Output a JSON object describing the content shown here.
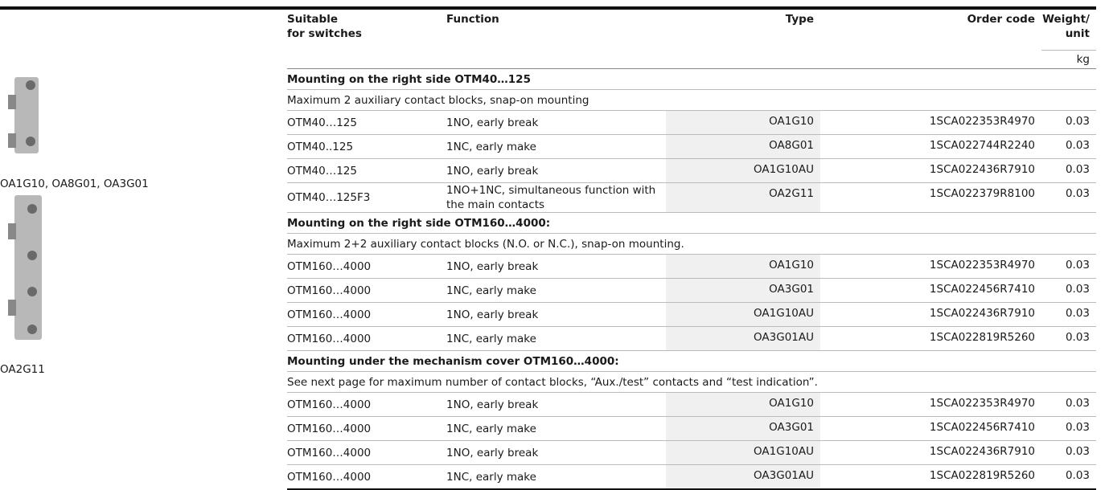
{
  "header": {
    "columns": [
      [
        "Suitable",
        "for switches"
      ],
      [
        "Function"
      ],
      [
        "Type"
      ],
      [
        "Order code"
      ],
      [
        "Weight/",
        "unit"
      ]
    ],
    "unit": "kg"
  },
  "images": [
    {
      "caption": "OA1G10, OA8G01, OA3G01"
    },
    {
      "caption": "OA2G11"
    }
  ],
  "sections": [
    {
      "title": "Mounting on the right side OTM40…125",
      "note": "Maximum 2 auxiliary contact blocks, snap-on mounting",
      "rows": [
        [
          "OTM40…125",
          "1NO, early break",
          "OA1G10",
          "1SCA022353R4970",
          "0.03"
        ],
        [
          "OTM40..125",
          "1NC, early make",
          "OA8G01",
          "1SCA022744R2240",
          "0.03"
        ],
        [
          "OTM40…125",
          "1NO, early break",
          "OA1G10AU",
          "1SCA022436R7910",
          "0.03"
        ],
        [
          "OTM40…125F3",
          "1NO+1NC, simultaneous function with the main contacts",
          "OA2G11",
          "1SCA022379R8100",
          "0.03"
        ]
      ]
    },
    {
      "title": "Mounting on the right side OTM160…4000:",
      "note": "Maximum 2+2 auxiliary contact blocks (N.O. or N.C.), snap-on mounting.",
      "rows": [
        [
          "OTM160…4000",
          "1NO, early break",
          "OA1G10",
          "1SCA022353R4970",
          "0.03"
        ],
        [
          "OTM160…4000",
          "1NC, early make",
          "OA3G01",
          "1SCA022456R7410",
          "0.03"
        ],
        [
          "OTM160…4000",
          "1NO, early break",
          "OA1G10AU",
          "1SCA022436R7910",
          "0.03"
        ],
        [
          "OTM160…4000",
          "1NC, early make",
          "OA3G01AU",
          "1SCA022819R5260",
          "0.03"
        ]
      ]
    },
    {
      "title": "Mounting under the mechanism cover OTM160…4000:",
      "note": "See next page for maximum number of contact blocks, “Aux./test” contacts and “test indication”.",
      "rows": [
        [
          "OTM160…4000",
          "1NO, early break",
          "OA1G10",
          "1SCA022353R4970",
          "0.03"
        ],
        [
          "OTM160…4000",
          "1NC, early make",
          "OA3G01",
          "1SCA022456R7410",
          "0.03"
        ],
        [
          "OTM160…4000",
          "1NO, early break",
          "OA1G10AU",
          "1SCA022436R7910",
          "0.03"
        ],
        [
          "OTM160…4000",
          "1NC, early make",
          "OA3G01AU",
          "1SCA022819R5260",
          "0.03"
        ]
      ]
    }
  ]
}
